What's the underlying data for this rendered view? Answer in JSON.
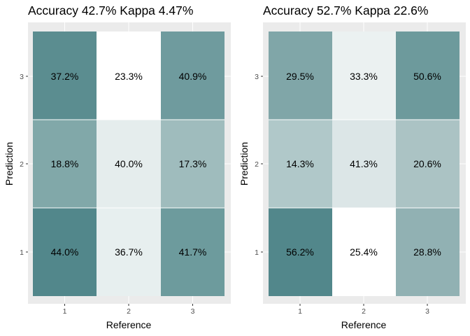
{
  "chart_data": [
    {
      "type": "heatmap",
      "title": "Accuracy 42.7% Kappa 4.47%",
      "xlabel": "Reference",
      "ylabel": "Prediction",
      "x_categories": [
        "1",
        "2",
        "3"
      ],
      "y_categories": [
        "1",
        "2",
        "3"
      ],
      "cells": [
        {
          "reference": "1",
          "prediction": "1",
          "label": "44.0%"
        },
        {
          "reference": "2",
          "prediction": "1",
          "label": "36.7%"
        },
        {
          "reference": "3",
          "prediction": "1",
          "label": "41.7%"
        },
        {
          "reference": "1",
          "prediction": "2",
          "label": "18.8%"
        },
        {
          "reference": "2",
          "prediction": "2",
          "label": "40.0%"
        },
        {
          "reference": "3",
          "prediction": "2",
          "label": "17.3%"
        },
        {
          "reference": "1",
          "prediction": "3",
          "label": "37.2%"
        },
        {
          "reference": "2",
          "prediction": "3",
          "label": "23.3%"
        },
        {
          "reference": "3",
          "prediction": "3",
          "label": "40.9%"
        }
      ],
      "grid": true,
      "legend": "none"
    },
    {
      "type": "heatmap",
      "title": "Accuracy 52.7% Kappa 22.6%",
      "xlabel": "Reference",
      "ylabel": "Prediction",
      "x_categories": [
        "1",
        "2",
        "3"
      ],
      "y_categories": [
        "1",
        "2",
        "3"
      ],
      "cells": [
        {
          "reference": "1",
          "prediction": "1",
          "label": "56.2%"
        },
        {
          "reference": "2",
          "prediction": "1",
          "label": "25.4%"
        },
        {
          "reference": "3",
          "prediction": "1",
          "label": "28.8%"
        },
        {
          "reference": "1",
          "prediction": "2",
          "label": "14.3%"
        },
        {
          "reference": "2",
          "prediction": "2",
          "label": "41.3%"
        },
        {
          "reference": "3",
          "prediction": "2",
          "label": "20.6%"
        },
        {
          "reference": "1",
          "prediction": "3",
          "label": "29.5%"
        },
        {
          "reference": "2",
          "prediction": "3",
          "label": "33.3%"
        },
        {
          "reference": "3",
          "prediction": "3",
          "label": "50.6%"
        }
      ],
      "grid": true,
      "legend": "none"
    }
  ],
  "colors": {
    "panel_background": "#ebebeb",
    "grid_line": "#ffffff",
    "tile_low": "#ffffff",
    "tile_high": "#4f8488"
  }
}
